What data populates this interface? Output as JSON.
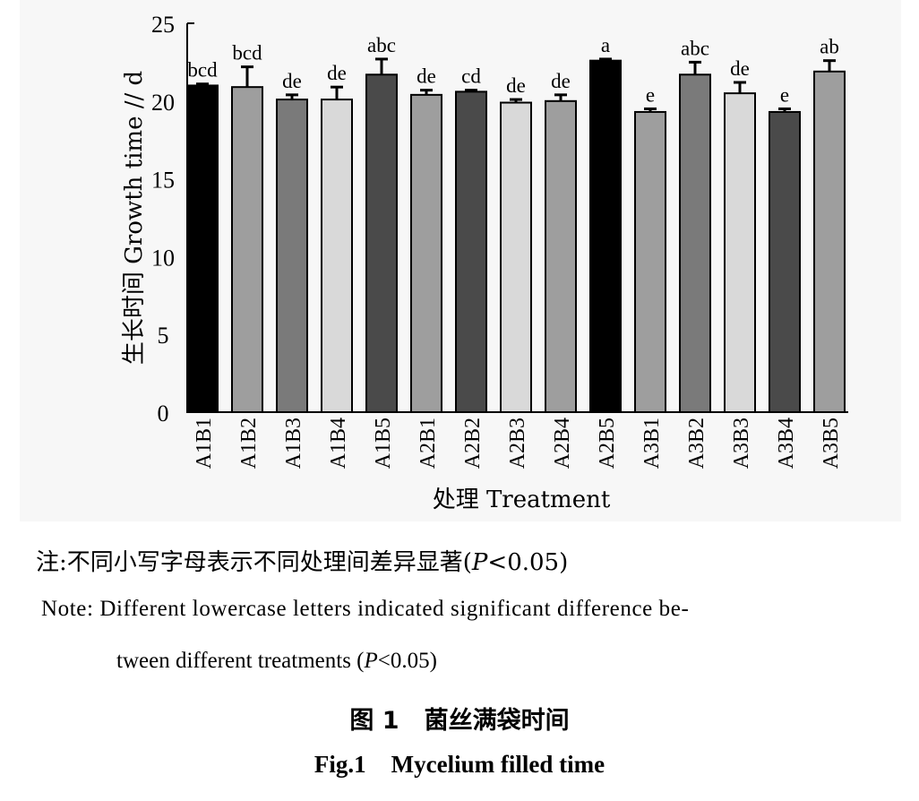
{
  "chart_data": {
    "type": "bar",
    "categories": [
      "A1B1",
      "A1B2",
      "A1B3",
      "A1B4",
      "A1B5",
      "A2B1",
      "A2B2",
      "A2B3",
      "A2B4",
      "A2B5",
      "A3B1",
      "A3B2",
      "A3B3",
      "A3B4",
      "A3B5"
    ],
    "values": [
      21.0,
      20.9,
      20.1,
      20.1,
      21.7,
      20.4,
      20.6,
      19.9,
      20.0,
      22.6,
      19.3,
      21.7,
      20.5,
      19.3,
      21.9
    ],
    "errors": [
      0.1,
      1.3,
      0.3,
      0.8,
      1.0,
      0.3,
      0.1,
      0.2,
      0.4,
      0.1,
      0.2,
      0.8,
      0.7,
      0.2,
      0.7
    ],
    "letters": [
      "bcd",
      "bcd",
      "de",
      "de",
      "abc",
      "de",
      "cd",
      "de",
      "de",
      "a",
      "e",
      "abc",
      "de",
      "e",
      "ab"
    ],
    "bar_colors": [
      "#000000",
      "#9e9e9e",
      "#7a7a7a",
      "#d9d9d9",
      "#4a4a4a",
      "#9e9e9e",
      "#4a4a4a",
      "#d9d9d9",
      "#9e9e9e",
      "#000000",
      "#9e9e9e",
      "#7a7a7a",
      "#d9d9d9",
      "#4a4a4a",
      "#9e9e9e"
    ],
    "ylabel": "生长时间 Growth time // d",
    "xlabel": "处理 Treatment",
    "ylim": [
      0,
      25
    ],
    "yticks": [
      0,
      5,
      10,
      15,
      20,
      25
    ],
    "grid": false
  },
  "note": {
    "cn_prefix": "注:不同小写字母表示不同处理间差异显著(",
    "p": "P",
    "cn_suffix": "<0.05)",
    "en_line1": "Note: Different lowercase letters indicated significant difference be-",
    "en_line2_prefix": "tween different treatments (",
    "en_line2_p": "P",
    "en_line2_suffix": "<0.05)"
  },
  "caption": {
    "cn_label": "图 1",
    "cn_title": "菌丝满袋时间",
    "en_label": "Fig.1",
    "en_title": "Mycelium filled time"
  }
}
